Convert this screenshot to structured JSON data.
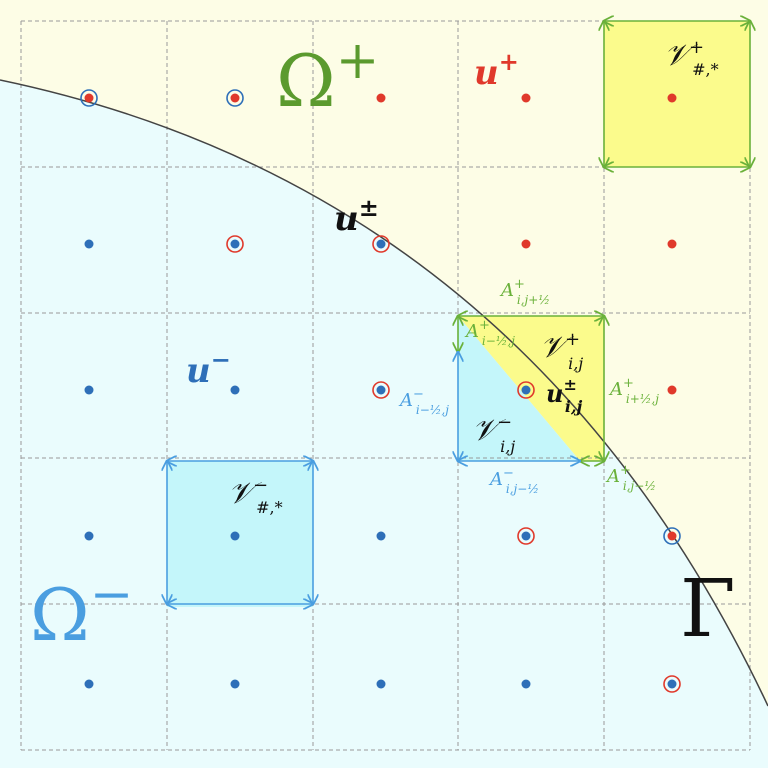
{
  "labels": {
    "omega_plus": "Ω",
    "omega_plus_sup": "+",
    "omega_minus": "Ω",
    "omega_minus_sup": "−",
    "gamma": "Γ",
    "u_plus": "u",
    "u_plus_sup": "+",
    "u_pm": "u",
    "u_pm_sup": "±",
    "u_minus": "u",
    "u_minus_sup": "−",
    "u_ij_pm": "u",
    "u_ij_pm_sup": "±",
    "u_ij_pm_sub": "i,j",
    "V": "𝒱",
    "V_plus_far_sup": "+",
    "V_plus_far_sub": "#,*",
    "V_minus_far_sup": "−",
    "V_minus_far_sub": "#,*",
    "V_ij_plus_sup": "+",
    "V_ij_plus_sub": "i,j",
    "V_ij_minus_sup": "−",
    "V_ij_minus_sub": "i,j",
    "A": "A",
    "A_top_sup": "+",
    "A_top_sub": "i,j+½",
    "A_left_plus_sup": "+",
    "A_left_plus_sub": "i−½,j",
    "A_right_sup": "+",
    "A_right_sub": "i+½,j",
    "A_bottom_plus_sup": "+",
    "A_bottom_plus_sub": "i,j−½",
    "A_left_minus_sup": "−",
    "A_left_minus_sub": "i−½,j",
    "A_bottom_minus_sup": "−",
    "A_bottom_minus_sub": "i,j−½"
  },
  "colors": {
    "plus_region": "#fdfde6",
    "minus_region": "#eafcfd",
    "grid": "#999999",
    "interface": "#444444",
    "red": "#e0392b",
    "blue": "#2e6fb8",
    "green": "#5b9a2e",
    "light_green": "#6ab13a",
    "light_blue": "#4a9ee0",
    "yellow_cell": "#fbfb8c",
    "cyan_cell": "#c4f6fa"
  }
}
